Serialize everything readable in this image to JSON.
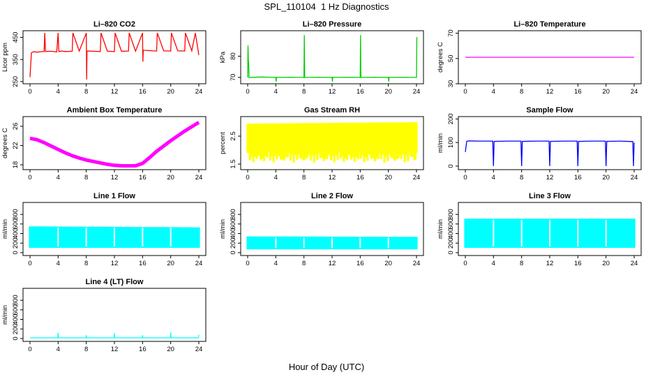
{
  "page": {
    "title": "SPL_110104  1 Hz Diagnostics",
    "xlabel": "Hour of Day (UTC)"
  },
  "chart_data": [
    {
      "type": "line",
      "title": "Li–820 CO2",
      "ylabel": "Licor ppm",
      "color": "#ff0000",
      "xlim": [
        0,
        24
      ],
      "xticks": [
        0,
        4,
        8,
        12,
        16,
        20,
        24
      ],
      "ylim": [
        240,
        480
      ],
      "yticks": [
        250,
        350,
        450
      ],
      "x": [
        0,
        0.2,
        0.5,
        1,
        1.5,
        2,
        2.1,
        2.2,
        3,
        3.8,
        4,
        4.1,
        4.5,
        5,
        6,
        6.1,
        7,
        8,
        8.05,
        8.1,
        9,
        10,
        10.1,
        11,
        12,
        12.1,
        13,
        14,
        14.1,
        15,
        16,
        16.05,
        16.1,
        17,
        18,
        18.1,
        19,
        20,
        20.1,
        21,
        22,
        22.1,
        23,
        23.5,
        24
      ],
      "y": [
        270,
        380,
        385,
        383,
        385,
        386,
        470,
        386,
        387,
        384,
        470,
        386,
        388,
        386,
        387,
        470,
        388,
        470,
        260,
        388,
        387,
        386,
        470,
        387,
        386,
        470,
        387,
        388,
        470,
        387,
        470,
        340,
        392,
        390,
        388,
        470,
        389,
        388,
        470,
        389,
        388,
        470,
        389,
        470,
        370
      ]
    },
    {
      "type": "line",
      "title": "Li–820 Pressure",
      "ylabel": "kPa",
      "color": "#00cc00",
      "xlim": [
        0,
        24
      ],
      "xticks": [
        0,
        4,
        8,
        12,
        16,
        20,
        24
      ],
      "ylim": [
        67,
        92
      ],
      "yticks": [
        70,
        80
      ],
      "x": [
        0,
        0.05,
        0.1,
        0.15,
        0.2,
        2,
        4,
        4.05,
        4.1,
        6,
        8,
        8.05,
        8.1,
        10,
        12,
        12.05,
        12.1,
        14,
        16,
        16.05,
        16.1,
        18,
        20,
        20.05,
        20.1,
        22,
        24,
        24.05
      ],
      "y": [
        70,
        85,
        78,
        76,
        70,
        70.2,
        70,
        68,
        70,
        70.1,
        70,
        90,
        70,
        70.1,
        70,
        68,
        70,
        70.1,
        70,
        90,
        70,
        70.1,
        70,
        68,
        70,
        70.1,
        70,
        89
      ]
    },
    {
      "type": "line",
      "title": "Li–820 Temperature",
      "ylabel": "degrees C",
      "color": "#ff00ff",
      "xlim": [
        0,
        24
      ],
      "xticks": [
        0,
        4,
        8,
        12,
        16,
        20,
        24
      ],
      "ylim": [
        30,
        72
      ],
      "yticks": [
        30,
        50,
        70
      ],
      "x": [
        0,
        24
      ],
      "y": [
        51,
        51
      ]
    },
    {
      "type": "line",
      "title": "Ambient Box Temperature",
      "ylabel": "degrees C",
      "color": "#ff00ff",
      "xlim": [
        0,
        24
      ],
      "xticks": [
        0,
        4,
        8,
        12,
        16,
        20,
        24
      ],
      "ylim": [
        17,
        28
      ],
      "yticks": [
        18,
        22,
        26
      ],
      "x": [
        0,
        1,
        2,
        3,
        4,
        5,
        6,
        7,
        8,
        9,
        10,
        11,
        12,
        13,
        14,
        15,
        16,
        17,
        18,
        19,
        20,
        21,
        22,
        23,
        24
      ],
      "y": [
        23.5,
        23.2,
        22.6,
        21.9,
        21.2,
        20.5,
        19.9,
        19.4,
        19.0,
        18.7,
        18.4,
        18.1,
        17.9,
        17.8,
        17.8,
        17.8,
        18.3,
        19.5,
        20.8,
        21.9,
        23.0,
        24.0,
        25.0,
        25.9,
        26.8
      ]
    },
    {
      "type": "area",
      "title": "Gas Stream RH",
      "ylabel": "percent",
      "color": "#ffff00",
      "xlim": [
        0,
        24
      ],
      "xticks": [
        0,
        4,
        8,
        12,
        16,
        20,
        24
      ],
      "ylim": [
        1.3,
        3.2
      ],
      "yticks": [
        1.5,
        2.5
      ],
      "x": [
        0,
        24
      ],
      "upper": [
        2.95,
        3.0
      ],
      "lower": [
        1.55,
        1.55
      ]
    },
    {
      "type": "line",
      "title": "Sample Flow",
      "ylabel": "ml/min",
      "color": "#0000ff",
      "xlim": [
        0,
        24
      ],
      "xticks": [
        0,
        4,
        8,
        12,
        16,
        20,
        24
      ],
      "ylim": [
        -15,
        210
      ],
      "yticks": [
        0,
        100,
        200
      ],
      "x": [
        0,
        0.2,
        0.5,
        2,
        3.9,
        4,
        4.1,
        6,
        7.9,
        8,
        8.1,
        10,
        11.9,
        12,
        12.1,
        14,
        15.9,
        16,
        16.1,
        18,
        19.9,
        20,
        20.1,
        22,
        23.8,
        23.9,
        24
      ],
      "y": [
        60,
        105,
        107,
        106,
        106,
        0,
        105,
        106,
        106,
        0,
        105,
        106,
        106,
        0,
        105,
        106,
        106,
        0,
        105,
        106,
        106,
        0,
        105,
        106,
        104,
        0,
        100
      ]
    },
    {
      "type": "area",
      "title": "Line 1 Flow",
      "ylabel": "ml/min",
      "color": "#00ffff",
      "xlim": [
        0,
        24
      ],
      "xticks": [
        0,
        4,
        8,
        12,
        16,
        20,
        24
      ],
      "ylim": [
        -60,
        1050
      ],
      "yticks": [
        0,
        200,
        400,
        600,
        800
      ],
      "x": [
        0,
        24
      ],
      "upper": [
        550,
        530
      ],
      "lower": [
        100,
        100
      ]
    },
    {
      "type": "area",
      "title": "Line 2 Flow",
      "ylabel": "ml/min",
      "color": "#00ffff",
      "xlim": [
        0,
        24
      ],
      "xticks": [
        0,
        4,
        8,
        12,
        16,
        20,
        24
      ],
      "ylim": [
        -60,
        1050
      ],
      "yticks": [
        0,
        200,
        400,
        600,
        800
      ],
      "x": [
        0,
        24
      ],
      "upper": [
        340,
        330
      ],
      "lower": [
        70,
        70
      ]
    },
    {
      "type": "area",
      "title": "Line 3 Flow",
      "ylabel": "ml/min",
      "color": "#00ffff",
      "xlim": [
        0,
        24
      ],
      "xticks": [
        0,
        4,
        8,
        12,
        16,
        20,
        24
      ],
      "ylim": [
        -60,
        1050
      ],
      "yticks": [
        0,
        200,
        400,
        600,
        800
      ],
      "x": [
        0,
        24
      ],
      "upper": [
        710,
        710
      ],
      "lower": [
        100,
        100
      ]
    },
    {
      "type": "line",
      "title": "Line 4 (LT) Flow",
      "ylabel": "ml/min",
      "color": "#00ffff",
      "xlim": [
        0,
        24
      ],
      "xticks": [
        0,
        4,
        8,
        12,
        16,
        20,
        24
      ],
      "ylim": [
        -60,
        1050
      ],
      "yticks": [
        0,
        200,
        400,
        600,
        800
      ],
      "x": [
        0,
        3.95,
        4,
        4.05,
        7.95,
        8,
        8.05,
        11.95,
        12,
        12.05,
        15.95,
        16,
        16.05,
        19.95,
        20,
        20.05,
        23.95,
        24
      ],
      "y": [
        15,
        15,
        120,
        15,
        15,
        70,
        15,
        15,
        110,
        15,
        15,
        70,
        15,
        15,
        130,
        15,
        15,
        80
      ]
    }
  ]
}
